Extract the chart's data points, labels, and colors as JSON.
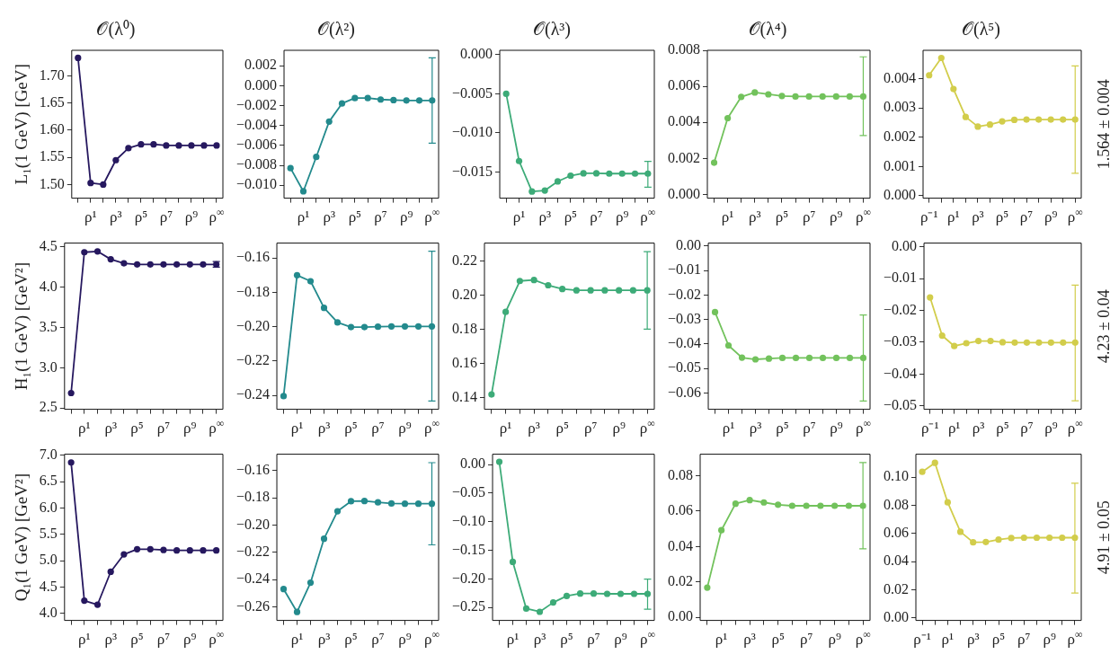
{
  "chart_data": [
    {
      "type": "line",
      "title": "𝒪(λ⁰)",
      "ylabel": "L₁(1 GeV) [GeV]",
      "marker": "circle",
      "color": "#26185f",
      "categories": [
        null,
        "ρ¹",
        null,
        "ρ³",
        null,
        "ρ⁵",
        null,
        "ρ⁷",
        null,
        "ρ⁹",
        null,
        "ρ$^{∞}$"
      ],
      "values": [
        1.733,
        1.503,
        1.5,
        1.545,
        1.567,
        1.574,
        1.574,
        1.572,
        1.572,
        1.572,
        1.572,
        1.572
      ],
      "ylim": [
        1.475,
        1.747
      ],
      "yticks": [
        {
          "value": 1.5,
          "label": "1.50"
        },
        1.55,
        {
          "value": 1.6,
          "label": "1.60"
        },
        1.65,
        {
          "value": 1.7,
          "label": "1.70"
        }
      ]
    },
    {
      "type": "line",
      "title": "𝒪(λ²)",
      "marker": "circle",
      "color": "#238a8d",
      "categories": [
        null,
        "ρ¹",
        null,
        "ρ³",
        null,
        "ρ⁵",
        null,
        "ρ⁷",
        null,
        "ρ⁹",
        null,
        "ρ$^{∞}$"
      ],
      "values": [
        -0.00828,
        -0.01061,
        -0.00716,
        -0.00361,
        -0.00179,
        -0.00125,
        -0.00125,
        -0.00139,
        -0.00145,
        -0.00149,
        -0.00149,
        -0.00149
      ],
      "errors": [
        null,
        null,
        null,
        null,
        null,
        null,
        null,
        null,
        null,
        null,
        null,
        [
          -0.00578,
          0.0028
        ]
      ],
      "ylim": [
        -0.0113,
        0.00355
      ],
      "yticks": [
        {
          "value": -0.01,
          "label": "−0.010"
        },
        {
          "value": -0.008,
          "label": "−0.008"
        },
        {
          "value": -0.006,
          "label": "−0.006"
        },
        {
          "value": -0.004,
          "label": "−0.004"
        },
        {
          "value": -0.002,
          "label": "−0.002"
        },
        {
          "value": 0,
          "label": "0.000"
        },
        0.002
      ]
    },
    {
      "type": "line",
      "title": "𝒪(λ³)",
      "marker": "circle",
      "color": "#3dab78",
      "categories": [
        null,
        "ρ¹",
        null,
        "ρ³",
        null,
        "ρ⁵",
        null,
        "ρ⁷",
        null,
        "ρ⁹",
        null,
        "ρ$^{∞}$"
      ],
      "values": [
        -0.005,
        -0.01359,
        -0.01749,
        -0.01736,
        -0.0162,
        -0.01546,
        -0.01516,
        -0.01516,
        -0.0152,
        -0.0152,
        -0.0152,
        -0.0152
      ],
      "errors": [
        null,
        null,
        null,
        null,
        null,
        null,
        null,
        null,
        null,
        null,
        null,
        [
          -0.01693,
          -0.01363
        ]
      ],
      "ylim": [
        -0.01834,
        0.00056
      ],
      "yticks": [
        {
          "value": -0.015,
          "label": "−0.015"
        },
        {
          "value": -0.01,
          "label": "−0.010"
        },
        {
          "value": -0.005,
          "label": "−0.005"
        },
        {
          "value": 0,
          "label": "0.000"
        }
      ]
    },
    {
      "type": "line",
      "title": "𝒪(λ⁴)",
      "marker": "circle",
      "color": "#72c25c",
      "categories": [
        null,
        "ρ¹",
        null,
        "ρ³",
        null,
        "ρ⁵",
        null,
        "ρ⁷",
        null,
        "ρ⁹",
        null,
        "ρ$^{∞}$"
      ],
      "values": [
        0.00177,
        0.00424,
        0.00542,
        0.00566,
        0.00556,
        0.00547,
        0.00544,
        0.00544,
        0.00544,
        0.00544,
        0.00544,
        0.00544
      ],
      "errors": [
        null,
        null,
        null,
        null,
        null,
        null,
        null,
        null,
        null,
        null,
        null,
        [
          0.00327,
          0.00764
        ]
      ],
      "ylim": [
        -0.0002,
        0.008
      ],
      "yticks": [
        {
          "value": 0,
          "label": "0.000"
        },
        0.002,
        0.004,
        0.006,
        0.008
      ]
    },
    {
      "type": "line",
      "title": "𝒪(λ⁵)",
      "marker": "circle",
      "color": "#d2cd4b",
      "categories": [
        "ρ⁻¹",
        null,
        "ρ¹",
        null,
        "ρ³",
        null,
        "ρ⁵",
        null,
        "ρ⁷",
        null,
        "ρ⁹",
        null,
        "ρ$^{∞}$"
      ],
      "values": [
        0.00411,
        0.0047,
        0.00364,
        0.00269,
        0.00236,
        0.00243,
        0.00254,
        0.00259,
        0.0026,
        0.0026,
        0.0026,
        0.0026,
        0.0026
      ],
      "errors": [
        null,
        null,
        null,
        null,
        null,
        null,
        null,
        null,
        null,
        null,
        null,
        null,
        [
          0.00077,
          0.00443
        ]
      ],
      "ylim": [
        -8e-05,
        0.00496
      ],
      "yticks": [
        {
          "value": 0,
          "label": "0.000"
        },
        0.001,
        0.002,
        0.003,
        0.004
      ],
      "annotations": [
        "1.564 ± 0.004"
      ]
    },
    {
      "type": "line",
      "ylabel": "H₁(1 GeV) [GeV²]",
      "marker": "circle",
      "color": "#26185f",
      "categories": [
        null,
        "ρ¹",
        null,
        "ρ³",
        null,
        "ρ⁵",
        null,
        "ρ⁷",
        null,
        "ρ⁹",
        null,
        "ρ$^{∞}$"
      ],
      "values": [
        2.687,
        4.436,
        4.446,
        4.348,
        4.298,
        4.284,
        4.284,
        4.284,
        4.284,
        4.284,
        4.284,
        4.284
      ],
      "errors": [
        null,
        null,
        null,
        null,
        null,
        null,
        null,
        null,
        null,
        null,
        null,
        [
          4.25,
          4.32
        ]
      ],
      "ylim": [
        2.485,
        4.549
      ],
      "yticks": [
        2.5,
        {
          "value": 3,
          "label": "3.0"
        },
        3.5,
        {
          "value": 4,
          "label": "4.0"
        },
        4.5
      ]
    },
    {
      "type": "line",
      "marker": "circle",
      "color": "#238a8d",
      "categories": [
        null,
        "ρ¹",
        null,
        "ρ³",
        null,
        "ρ⁵",
        null,
        "ρ⁷",
        null,
        "ρ⁹",
        null,
        "ρ$^{∞}$"
      ],
      "values": [
        -0.2404,
        -0.17,
        -0.1735,
        -0.189,
        -0.1975,
        -0.2002,
        -0.2002,
        -0.2,
        -0.1998,
        -0.1998,
        -0.1998,
        -0.1998
      ],
      "errors": [
        null,
        null,
        null,
        null,
        null,
        null,
        null,
        null,
        null,
        null,
        null,
        [
          -0.2433,
          -0.156
        ]
      ],
      "ylim": [
        -0.2481,
        -0.1513
      ],
      "yticks": [
        {
          "value": -0.24,
          "label": "−0.24"
        },
        {
          "value": -0.22,
          "label": "−0.22"
        },
        {
          "value": -0.2,
          "label": "−0.20"
        },
        {
          "value": -0.18,
          "label": "−0.18"
        },
        {
          "value": -0.16,
          "label": "−0.16"
        }
      ]
    },
    {
      "type": "line",
      "marker": "circle",
      "color": "#3dab78",
      "categories": [
        null,
        "ρ¹",
        null,
        "ρ³",
        null,
        "ρ⁵",
        null,
        "ρ⁷",
        null,
        "ρ⁹",
        null,
        "ρ$^{∞}$"
      ],
      "values": [
        0.1418,
        0.1902,
        0.2083,
        0.2089,
        0.2058,
        0.2036,
        0.2028,
        0.2028,
        0.2028,
        0.2028,
        0.2028,
        0.2028
      ],
      "errors": [
        null,
        null,
        null,
        null,
        null,
        null,
        null,
        null,
        null,
        null,
        null,
        [
          0.1801,
          0.2255
        ]
      ],
      "ylim": [
        0.1331,
        0.2305
      ],
      "yticks": [
        0.14,
        0.16,
        0.18,
        {
          "value": 0.2,
          "label": "0.20"
        },
        0.22
      ]
    },
    {
      "type": "line",
      "marker": "circle",
      "color": "#72c25c",
      "categories": [
        null,
        "ρ¹",
        null,
        "ρ³",
        null,
        "ρ⁵",
        null,
        "ρ⁷",
        null,
        "ρ⁹",
        null,
        "ρ$^{∞}$"
      ],
      "values": [
        -0.027,
        -0.0406,
        -0.0456,
        -0.0463,
        -0.046,
        -0.0457,
        -0.0457,
        -0.0457,
        -0.0457,
        -0.0457,
        -0.0457,
        -0.0457
      ],
      "errors": [
        null,
        null,
        null,
        null,
        null,
        null,
        null,
        null,
        null,
        null,
        null,
        [
          -0.0633,
          -0.0282
        ]
      ],
      "ylim": [
        -0.0667,
        0.0012
      ],
      "yticks": [
        {
          "value": -0.06,
          "label": "−0.06"
        },
        {
          "value": -0.05,
          "label": "−0.05"
        },
        {
          "value": -0.04,
          "label": "−0.04"
        },
        {
          "value": -0.03,
          "label": "−0.03"
        },
        {
          "value": -0.02,
          "label": "−0.02"
        },
        {
          "value": -0.01,
          "label": "−0.01"
        },
        {
          "value": 0,
          "label": "0.00"
        }
      ]
    },
    {
      "type": "line",
      "marker": "circle",
      "color": "#d2cd4b",
      "categories": [
        "ρ⁻¹",
        null,
        "ρ¹",
        null,
        "ρ³",
        null,
        "ρ⁵",
        null,
        "ρ⁷",
        null,
        "ρ⁹",
        null,
        "ρ$^{∞}$"
      ],
      "values": [
        -0.0159,
        -0.0279,
        -0.0312,
        -0.0303,
        -0.0296,
        -0.0296,
        -0.03,
        -0.0301,
        -0.0301,
        -0.0301,
        -0.0301,
        -0.0301,
        -0.0301
      ],
      "errors": [
        null,
        null,
        null,
        null,
        null,
        null,
        null,
        null,
        null,
        null,
        null,
        null,
        [
          -0.0484,
          -0.012
        ]
      ],
      "ylim": [
        -0.0511,
        0.0012
      ],
      "yticks": [
        {
          "value": -0.05,
          "label": "−0.05"
        },
        {
          "value": -0.04,
          "label": "−0.04"
        },
        {
          "value": -0.03,
          "label": "−0.03"
        },
        {
          "value": -0.02,
          "label": "−0.02"
        },
        {
          "value": -0.01,
          "label": "−0.01"
        },
        {
          "value": 0,
          "label": "0.00"
        }
      ],
      "annotations": [
        "4.23 ± 0.04"
      ]
    },
    {
      "type": "line",
      "ylabel": "Q₁(1 GeV) [GeV²]",
      "marker": "circle",
      "color": "#26185f",
      "categories": [
        null,
        "ρ¹",
        null,
        "ρ³",
        null,
        "ρ⁵",
        null,
        "ρ⁷",
        null,
        "ρ⁹",
        null,
        "ρ$^{∞}$"
      ],
      "values": [
        6.865,
        4.241,
        4.165,
        4.789,
        5.12,
        5.218,
        5.218,
        5.203,
        5.195,
        5.195,
        5.195,
        5.195
      ],
      "ylim": [
        3.865,
        7.023
      ],
      "yticks": [
        {
          "value": 4,
          "label": "4.0"
        },
        4.5,
        {
          "value": 5,
          "label": "5.0"
        },
        5.5,
        {
          "value": 6,
          "label": "6.0"
        },
        6.5,
        {
          "value": 7,
          "label": "7.0"
        }
      ]
    },
    {
      "type": "line",
      "marker": "circle",
      "color": "#238a8d",
      "categories": [
        null,
        "ρ¹",
        null,
        "ρ³",
        null,
        "ρ⁵",
        null,
        "ρ⁷",
        null,
        "ρ⁹",
        null,
        "ρ$^{∞}$"
      ],
      "values": [
        -0.2469,
        -0.2637,
        -0.2422,
        -0.21,
        -0.1898,
        -0.1825,
        -0.1823,
        -0.1833,
        -0.1841,
        -0.1843,
        -0.1843,
        -0.1843
      ],
      "errors": [
        null,
        null,
        null,
        null,
        null,
        null,
        null,
        null,
        null,
        null,
        null,
        [
          -0.2145,
          -0.1542
        ]
      ],
      "ylim": [
        -0.2699,
        -0.148
      ],
      "yticks": [
        {
          "value": -0.26,
          "label": "−0.26"
        },
        {
          "value": -0.24,
          "label": "−0.24"
        },
        {
          "value": -0.22,
          "label": "−0.22"
        },
        {
          "value": -0.2,
          "label": "−0.20"
        },
        {
          "value": -0.18,
          "label": "−0.18"
        },
        {
          "value": -0.16,
          "label": "−0.16"
        }
      ]
    },
    {
      "type": "line",
      "marker": "circle",
      "color": "#3dab78",
      "categories": [
        null,
        "ρ¹",
        null,
        "ρ³",
        null,
        "ρ⁵",
        null,
        "ρ⁷",
        null,
        "ρ⁹",
        null,
        "ρ$^{∞}$"
      ],
      "values": [
        0.005,
        -0.1702,
        -0.2519,
        -0.2575,
        -0.2412,
        -0.2299,
        -0.2255,
        -0.2255,
        -0.2261,
        -0.2261,
        -0.2261,
        -0.2261
      ],
      "errors": [
        null,
        null,
        null,
        null,
        null,
        null,
        null,
        null,
        null,
        null,
        null,
        [
          -0.2531,
          -0.2004
        ]
      ],
      "ylim": [
        -0.2726,
        0.0182
      ],
      "yticks": [
        {
          "value": -0.25,
          "label": "−0.25"
        },
        {
          "value": -0.2,
          "label": "−0.20"
        },
        {
          "value": -0.15,
          "label": "−0.15"
        },
        {
          "value": -0.1,
          "label": "−0.10"
        },
        {
          "value": -0.05,
          "label": "−0.05"
        },
        {
          "value": 0,
          "label": "0.00"
        }
      ]
    },
    {
      "type": "line",
      "marker": "circle",
      "color": "#72c25c",
      "categories": [
        null,
        "ρ¹",
        null,
        "ρ³",
        null,
        "ρ⁵",
        null,
        "ρ⁷",
        null,
        "ρ⁹",
        null,
        "ρ$^{∞}$"
      ],
      "values": [
        0.0168,
        0.0492,
        0.0642,
        0.0662,
        0.0649,
        0.0636,
        0.063,
        0.063,
        0.063,
        0.063,
        0.063,
        0.063
      ],
      "errors": [
        null,
        null,
        null,
        null,
        null,
        null,
        null,
        null,
        null,
        null,
        null,
        [
          0.0387,
          0.0874
        ]
      ],
      "ylim": [
        -0.0017,
        0.0921
      ],
      "yticks": [
        {
          "value": 0,
          "label": "0.00"
        },
        0.02,
        0.04,
        0.06,
        0.08
      ]
    },
    {
      "type": "line",
      "marker": "circle",
      "color": "#d2cd4b",
      "categories": [
        "ρ⁻¹",
        null,
        "ρ¹",
        null,
        "ρ³",
        null,
        "ρ⁵",
        null,
        "ρ⁷",
        null,
        "ρ⁹",
        null,
        "ρ$^{∞}$"
      ],
      "values": [
        0.1039,
        0.1103,
        0.0822,
        0.0613,
        0.0538,
        0.054,
        0.0557,
        0.0568,
        0.0571,
        0.0571,
        0.0571,
        0.0571,
        0.0571
      ],
      "errors": [
        null,
        null,
        null,
        null,
        null,
        null,
        null,
        null,
        null,
        null,
        null,
        null,
        [
          0.0178,
          0.0958
        ]
      ],
      "ylim": [
        -0.0017,
        0.1164
      ],
      "yticks": [
        {
          "value": 0,
          "label": "0.00"
        },
        0.02,
        0.04,
        0.06,
        0.08,
        {
          "value": 0.1,
          "label": "0.10"
        }
      ],
      "annotations": [
        "4.91 ± 0.05"
      ]
    }
  ]
}
